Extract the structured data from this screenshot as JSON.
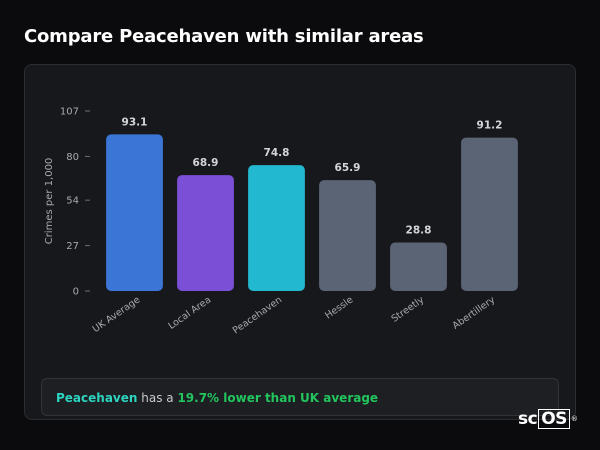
{
  "page": {
    "title": "Compare Peacehaven with similar areas"
  },
  "chart_data": {
    "type": "bar",
    "ylabel": "Crimes per 1,000",
    "xlabel": "",
    "ylim": [
      0,
      107
    ],
    "yticks": [
      0,
      27,
      54,
      80,
      107
    ],
    "grid": false,
    "categories": [
      "UK Average",
      "Local Area",
      "Peacehaven",
      "Hessle",
      "Streetly",
      "Abertillery"
    ],
    "values": [
      93.1,
      68.9,
      74.8,
      65.9,
      28.8,
      91.2
    ],
    "value_labels": [
      "93.1",
      "68.9",
      "74.8",
      "65.9",
      "28.8",
      "91.2"
    ],
    "colors": [
      "#3b76d6",
      "#7b4fd6",
      "#22b8cf",
      "#5b6475",
      "#5b6475",
      "#5b6475"
    ]
  },
  "summary": {
    "name": "Peacehaven",
    "middle": " has a ",
    "highlight": "19.7% lower than UK average"
  },
  "logo": {
    "prefix": "sc",
    "boxed": "OS",
    "mark": "®"
  }
}
